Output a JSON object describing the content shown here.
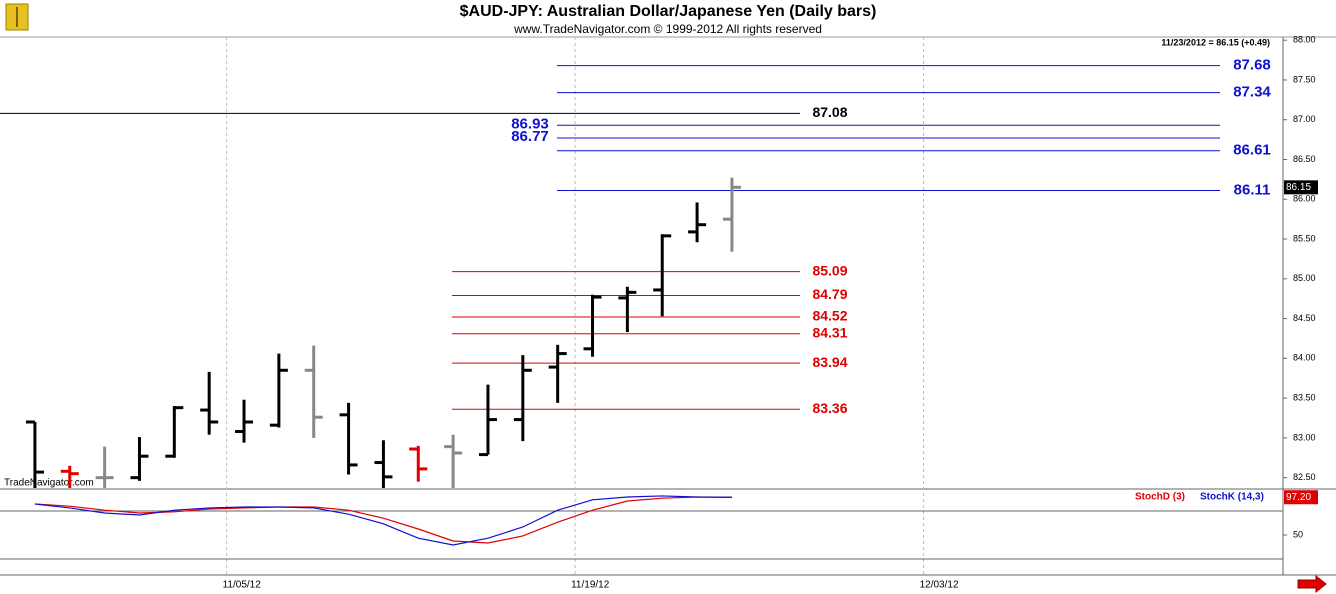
{
  "chart_data": [
    {
      "type": "ohlc",
      "title": "$AUD-JPY:  Australian Dollar/Japanese Yen  (Daily bars)",
      "subtitle": "www.TradeNavigator.com © 1999-2012 All rights reserved",
      "info": "11/23/2012 = 86.15 (+0.49)",
      "watermark": "TradeNavigator.com",
      "categories": [
        null,
        null,
        null,
        null,
        null,
        null,
        "11/05/12",
        null,
        null,
        null,
        null,
        null,
        null,
        null,
        null,
        null,
        "11/19/12",
        null,
        null,
        null,
        null,
        null,
        null,
        null,
        null,
        null,
        "12/03/12",
        null,
        null,
        null,
        null,
        null,
        null,
        null,
        null,
        null
      ],
      "series": {
        "open": [
          83.2,
          82.58,
          82.5,
          82.5,
          82.77,
          83.35,
          83.08,
          83.16,
          83.85,
          83.29,
          82.69,
          82.86,
          82.89,
          82.79,
          83.23,
          83.89,
          84.12,
          84.76,
          84.86,
          85.59,
          85.75
        ],
        "high": [
          83.2,
          82.65,
          82.89,
          83.01,
          83.4,
          83.83,
          83.48,
          84.06,
          84.16,
          83.44,
          82.97,
          82.9,
          83.04,
          83.67,
          84.04,
          84.17,
          84.8,
          84.9,
          85.56,
          85.96,
          86.27
        ],
        "low": [
          82.37,
          82.37,
          82.37,
          82.46,
          82.75,
          83.04,
          82.94,
          83.13,
          83.0,
          82.54,
          82.37,
          82.45,
          82.37,
          82.79,
          82.96,
          83.44,
          84.02,
          84.33,
          84.53,
          85.46,
          85.34
        ],
        "close": [
          82.57,
          82.55,
          82.5,
          82.77,
          83.38,
          83.2,
          83.2,
          83.85,
          83.26,
          82.66,
          82.51,
          82.61,
          82.81,
          83.23,
          83.85,
          84.06,
          84.77,
          84.83,
          85.54,
          85.68,
          86.15
        ]
      },
      "bar_colors": [
        "#000000",
        "#e00000",
        "#888888",
        "#000000",
        "#000000",
        "#000000",
        "#000000",
        "#000000",
        "#888888",
        "#000000",
        "#000000",
        "#e00000",
        "#888888",
        "#000000",
        "#000000",
        "#000000",
        "#000000",
        "#000000",
        "#000000",
        "#000000",
        "#888888"
      ],
      "levels": [
        {
          "color": "#1010d0",
          "values": [
            87.68,
            87.34,
            86.61,
            86.11
          ]
        },
        {
          "color": "#1010d0",
          "values": [
            86.93,
            86.77
          ]
        },
        {
          "color": "#000000",
          "values": [
            87.08
          ]
        },
        {
          "color": "#e00000",
          "values": [
            85.09,
            84.79,
            84.52,
            84.31,
            83.94,
            83.36
          ]
        }
      ],
      "ylim": [
        82.37,
        88.04
      ],
      "yticks": [
        {
          "value": 82.5,
          "label": "82.50"
        },
        {
          "value": 83,
          "label": "83.00"
        },
        {
          "value": 83.5,
          "label": "83.50"
        },
        {
          "value": 84,
          "label": "84.00"
        },
        {
          "value": 84.5,
          "label": "84.50"
        },
        {
          "value": 85,
          "label": "85.00"
        },
        {
          "value": 85.5,
          "label": "85.50"
        },
        {
          "value": 86,
          "label": "86.00"
        },
        {
          "value": 86.5,
          "label": "86.50"
        },
        {
          "value": 87,
          "label": "87.00"
        },
        {
          "value": 87.5,
          "label": "87.50"
        },
        {
          "value": 88,
          "label": "88.00"
        }
      ]
    },
    {
      "type": "line",
      "series": [
        {
          "name": "StochD (3)",
          "color": "#e00000",
          "values": [
            88.8,
            86,
            81,
            77.5,
            79,
            82.5,
            83.8,
            85,
            85,
            81,
            71,
            57.5,
            42.5,
            40,
            48.8,
            66,
            81,
            92.5,
            96,
            97.5,
            97.2
          ]
        },
        {
          "name": "StochK (14,3)",
          "color": "#1010d0",
          "values": [
            88.75,
            83.8,
            77.5,
            75,
            81,
            83.8,
            85,
            85,
            83.8,
            76,
            64,
            46,
            37.5,
            46,
            60,
            81,
            94,
            97.5,
            98.8,
            97.5,
            97.2
          ]
        }
      ],
      "last_label": "97.20",
      "reference_lines": [
        20,
        80
      ],
      "ylim": [
        0,
        107.5
      ],
      "yticks": [
        50
      ]
    }
  ]
}
